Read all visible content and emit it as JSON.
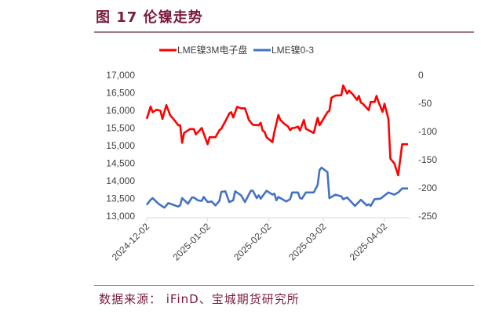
{
  "title": "图 17    伦镍走势",
  "source": "数据来源：  iFinD、宝城期货研究所",
  "chart_data": {
    "type": "line",
    "x_unit": "days since 2024-12-02",
    "x_ticks": [
      {
        "day": 0,
        "label": "2024-12-02"
      },
      {
        "day": 31,
        "label": "2025-01-02"
      },
      {
        "day": 62,
        "label": "2025-02-02"
      },
      {
        "day": 90,
        "label": "2025-03-02"
      },
      {
        "day": 121,
        "label": "2025-04-02"
      }
    ],
    "xlim": [
      0,
      133
    ],
    "y_left": {
      "lim": [
        13000,
        17000
      ],
      "ticks": [
        "13,000",
        "13,500",
        "14,000",
        "14,500",
        "15,000",
        "15,500",
        "16,000",
        "16,500",
        "17,000"
      ],
      "tick_values": [
        13000,
        13500,
        14000,
        14500,
        15000,
        15500,
        16000,
        16500,
        17000
      ]
    },
    "y_right": {
      "lim": [
        -250,
        0
      ],
      "ticks": [
        "-250",
        "-200",
        "-150",
        "-100",
        "-50",
        "0"
      ],
      "tick_values": [
        -250,
        -200,
        -150,
        -100,
        -50,
        0
      ]
    },
    "legend_position": "top-center",
    "series": [
      {
        "name": "LME镍3M电子盘",
        "axis": "left",
        "color": "#ff0000",
        "points": [
          [
            0,
            15760
          ],
          [
            2,
            16110
          ],
          [
            3,
            15950
          ],
          [
            5,
            16020
          ],
          [
            7,
            15990
          ],
          [
            8,
            15760
          ],
          [
            10,
            16150
          ],
          [
            12,
            15860
          ],
          [
            14,
            15730
          ],
          [
            16,
            15580
          ],
          [
            17,
            15580
          ],
          [
            18,
            15080
          ],
          [
            19,
            15360
          ],
          [
            22,
            15470
          ],
          [
            24,
            15470
          ],
          [
            25,
            15320
          ],
          [
            28,
            15500
          ],
          [
            31,
            15040
          ],
          [
            32,
            15240
          ],
          [
            35,
            15240
          ],
          [
            37,
            15440
          ],
          [
            38,
            15480
          ],
          [
            40,
            15690
          ],
          [
            42,
            15910
          ],
          [
            43,
            15950
          ],
          [
            44,
            15800
          ],
          [
            46,
            16100
          ],
          [
            48,
            16060
          ],
          [
            50,
            16060
          ],
          [
            52,
            15730
          ],
          [
            54,
            15590
          ],
          [
            57,
            15580
          ],
          [
            58,
            15650
          ],
          [
            59,
            15430
          ],
          [
            60,
            15390
          ],
          [
            61,
            15240
          ],
          [
            64,
            15100
          ],
          [
            65,
            15390
          ],
          [
            67,
            15870
          ],
          [
            68,
            15730
          ],
          [
            70,
            15620
          ],
          [
            72,
            15540
          ],
          [
            73,
            15440
          ],
          [
            74,
            15500
          ],
          [
            75,
            15500
          ],
          [
            77,
            15540
          ],
          [
            78,
            15430
          ],
          [
            80,
            15730
          ],
          [
            81,
            15480
          ],
          [
            85,
            15360
          ],
          [
            87,
            15790
          ],
          [
            88,
            15580
          ],
          [
            92,
            15950
          ],
          [
            93,
            15990
          ],
          [
            94,
            16360
          ],
          [
            96,
            16420
          ],
          [
            99,
            16430
          ],
          [
            100,
            16710
          ],
          [
            102,
            16480
          ],
          [
            103,
            16560
          ],
          [
            105,
            16450
          ],
          [
            107,
            16300
          ],
          [
            108,
            16410
          ],
          [
            109,
            16220
          ],
          [
            110,
            16190
          ],
          [
            113,
            16010
          ],
          [
            114,
            16240
          ],
          [
            116,
            16240
          ],
          [
            117,
            16410
          ],
          [
            118,
            16240
          ],
          [
            120,
            15960
          ],
          [
            121,
            16190
          ],
          [
            123,
            15760
          ],
          [
            124,
            14630
          ],
          [
            126,
            14500
          ],
          [
            128,
            14160
          ],
          [
            130,
            15040
          ],
          [
            133,
            15040
          ]
        ]
      },
      {
        "name": "LME镍0-3",
        "axis": "right",
        "color": "#4472c4",
        "points": [
          [
            0,
            -230
          ],
          [
            2,
            -221
          ],
          [
            3,
            -218
          ],
          [
            6,
            -228
          ],
          [
            9,
            -235
          ],
          [
            11,
            -227
          ],
          [
            16,
            -233
          ],
          [
            17,
            -231
          ],
          [
            18,
            -218
          ],
          [
            21,
            -228
          ],
          [
            23,
            -217
          ],
          [
            24,
            -217
          ],
          [
            26,
            -222
          ],
          [
            28,
            -223
          ],
          [
            29,
            -216
          ],
          [
            31,
            -225
          ],
          [
            33,
            -224
          ],
          [
            35,
            -231
          ],
          [
            37,
            -223
          ],
          [
            38,
            -207
          ],
          [
            40,
            -206
          ],
          [
            42,
            -225
          ],
          [
            44,
            -222
          ],
          [
            45,
            -206
          ],
          [
            48,
            -213
          ],
          [
            50,
            -225
          ],
          [
            53,
            -205
          ],
          [
            54,
            -205
          ],
          [
            56,
            -218
          ],
          [
            57,
            -213
          ],
          [
            58,
            -219
          ],
          [
            61,
            -205
          ],
          [
            64,
            -212
          ],
          [
            65,
            -210
          ],
          [
            66,
            -222
          ],
          [
            67,
            -216
          ],
          [
            71,
            -224
          ],
          [
            73,
            -220
          ],
          [
            74,
            -208
          ],
          [
            77,
            -208
          ],
          [
            78,
            -218
          ],
          [
            79,
            -219
          ],
          [
            81,
            -208
          ],
          [
            85,
            -208
          ],
          [
            87,
            -195
          ],
          [
            88,
            -168
          ],
          [
            89,
            -164
          ],
          [
            92,
            -172
          ],
          [
            93,
            -218
          ],
          [
            96,
            -212
          ],
          [
            99,
            -215
          ],
          [
            100,
            -220
          ],
          [
            102,
            -217
          ],
          [
            106,
            -232
          ],
          [
            109,
            -221
          ],
          [
            112,
            -231
          ],
          [
            113,
            -229
          ],
          [
            114,
            -232
          ],
          [
            115,
            -226
          ],
          [
            116,
            -220
          ],
          [
            119,
            -219
          ],
          [
            123,
            -208
          ],
          [
            126,
            -212
          ],
          [
            128,
            -208
          ],
          [
            130,
            -201
          ],
          [
            133,
            -201
          ]
        ]
      }
    ]
  }
}
